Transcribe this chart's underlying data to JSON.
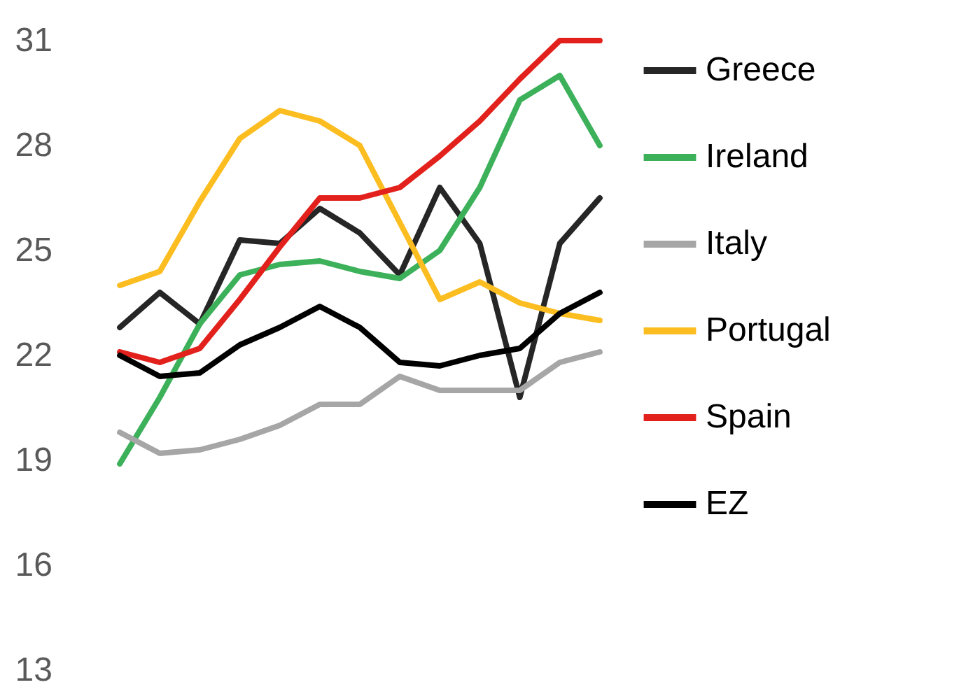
{
  "chart_data": {
    "type": "line",
    "categories": [
      null,
      null,
      null,
      null,
      null,
      null,
      null,
      null,
      null,
      null,
      null,
      null,
      null
    ],
    "ylim": [
      13,
      31
    ],
    "yticks": [
      13,
      16,
      19,
      22,
      25,
      28,
      31
    ],
    "grid": false,
    "legend": "right",
    "tick_labels": "y",
    "series": [
      {
        "name": "Greece",
        "color": "#262626",
        "values": [
          22.8,
          23.8,
          22.9,
          25.3,
          25.2,
          26.2,
          25.5,
          24.3,
          26.8,
          25.2,
          20.8,
          25.2,
          26.5
        ]
      },
      {
        "name": "Ireland",
        "color": "#3cb15a",
        "values": [
          18.9,
          20.8,
          22.9,
          24.3,
          24.6,
          24.7,
          24.4,
          24.2,
          25.0,
          26.8,
          29.3,
          30.0,
          28.0
        ]
      },
      {
        "name": "Italy",
        "color": "#a6a6a6",
        "values": [
          19.8,
          19.2,
          19.3,
          19.6,
          20.0,
          20.6,
          20.6,
          21.4,
          21.0,
          21.0,
          21.0,
          21.8,
          22.1
        ]
      },
      {
        "name": "Portugal",
        "color": "#fbbd20",
        "values": [
          24.0,
          24.4,
          26.4,
          28.2,
          29.0,
          28.7,
          28.0,
          25.8,
          23.6,
          24.1,
          23.5,
          23.2,
          23.0
        ]
      },
      {
        "name": "Spain",
        "color": "#e3211c",
        "values": [
          22.1,
          21.8,
          22.2,
          23.6,
          25.1,
          26.5,
          26.5,
          26.8,
          27.7,
          28.7,
          29.9,
          31.0,
          31.0
        ]
      },
      {
        "name": "EZ",
        "color": "#000000",
        "values": [
          22.0,
          21.4,
          21.5,
          22.3,
          22.8,
          23.4,
          22.8,
          21.8,
          21.7,
          22.0,
          22.2,
          23.2,
          23.8
        ]
      }
    ]
  }
}
